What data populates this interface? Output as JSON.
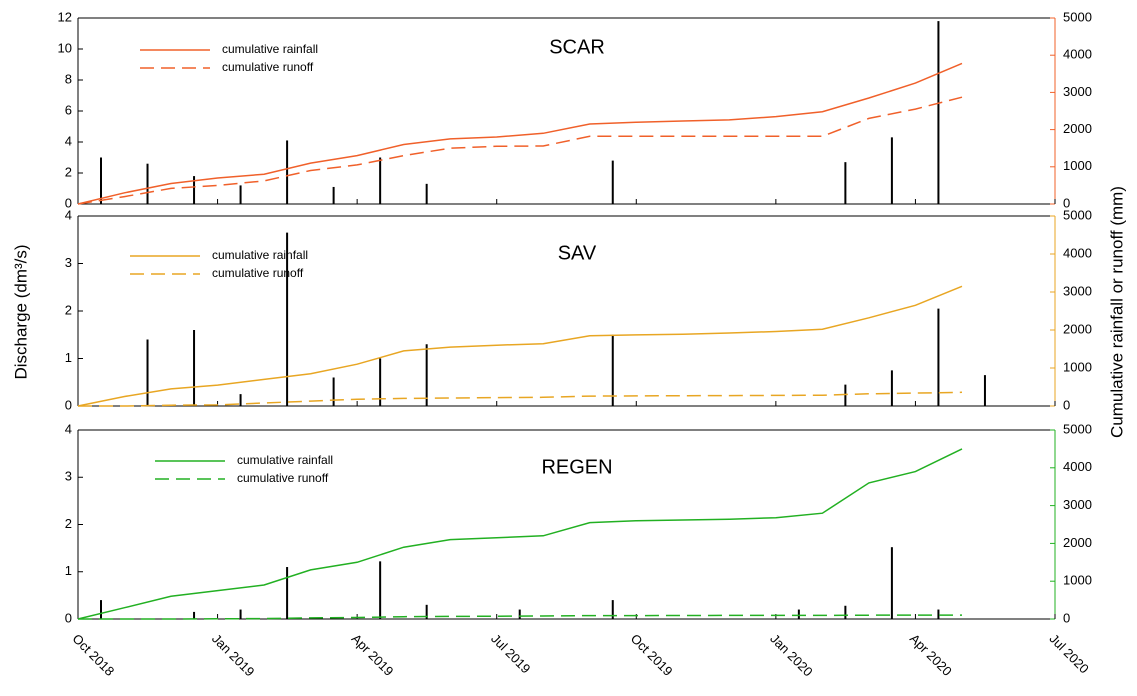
{
  "y_label": "Discharge (dm³/s)",
  "y2_label": "Cumulative rainfall or runoff (mm)",
  "chart_data": [
    {
      "type": "line",
      "title": "SCAR",
      "color": "#f0602a",
      "x": [
        "2018-10",
        "2018-11",
        "2018-12",
        "2019-01",
        "2019-02",
        "2019-03",
        "2019-04",
        "2019-05",
        "2019-06",
        "2019-07",
        "2019-08",
        "2019-09",
        "2019-10",
        "2019-11",
        "2019-12",
        "2020-01",
        "2020-02",
        "2020-03",
        "2020-04",
        "2020-05"
      ],
      "series": [
        {
          "name": "cumulative rainfall",
          "color": "#f0602a",
          "style": "solid",
          "axis": "y2",
          "values": [
            0,
            300,
            550,
            700,
            800,
            1100,
            1300,
            1600,
            1750,
            1800,
            1900,
            2150,
            2200,
            2230,
            2260,
            2350,
            2480,
            2850,
            3250,
            3780
          ]
        },
        {
          "name": "cumulative runoff",
          "color": "#f0602a",
          "style": "dashed",
          "axis": "y2",
          "values": [
            0,
            200,
            420,
            500,
            620,
            900,
            1050,
            1300,
            1500,
            1550,
            1560,
            1820,
            1820,
            1820,
            1820,
            1820,
            1820,
            2300,
            2550,
            2870
          ]
        }
      ],
      "discharge": {
        "color": "#000000",
        "x": [
          "2018-10",
          "2018-11",
          "2018-12",
          "2019-01",
          "2019-02",
          "2019-03",
          "2019-04",
          "2019-05",
          "2019-09",
          "2020-02",
          "2020-03",
          "2020-04"
        ],
        "values": [
          3.0,
          2.6,
          1.8,
          1.2,
          4.1,
          1.1,
          3.0,
          1.3,
          2.8,
          2.7,
          4.3,
          11.8
        ]
      },
      "xlim": [
        "2018-10",
        "2020-07"
      ],
      "ylim": [
        0,
        12
      ],
      "yticks": [
        0,
        2,
        4,
        6,
        8,
        10,
        12
      ],
      "y2lim": [
        0,
        5000
      ],
      "y2ticks": [
        0,
        1000,
        2000,
        3000,
        4000,
        5000
      ]
    },
    {
      "type": "line",
      "title": "SAV",
      "color": "#e8a623",
      "x": [
        "2018-10",
        "2018-11",
        "2018-12",
        "2019-01",
        "2019-02",
        "2019-03",
        "2019-04",
        "2019-05",
        "2019-06",
        "2019-07",
        "2019-08",
        "2019-09",
        "2019-10",
        "2019-11",
        "2019-12",
        "2020-01",
        "2020-02",
        "2020-03",
        "2020-04",
        "2020-05"
      ],
      "series": [
        {
          "name": "cumulative rainfall",
          "color": "#e8a623",
          "style": "solid",
          "axis": "y2",
          "values": [
            0,
            250,
            450,
            550,
            700,
            850,
            1100,
            1450,
            1550,
            1600,
            1640,
            1850,
            1870,
            1890,
            1920,
            1960,
            2020,
            2320,
            2650,
            3150
          ]
        },
        {
          "name": "cumulative runoff",
          "color": "#e8a623",
          "style": "dashed",
          "axis": "y2",
          "values": [
            0,
            0,
            20,
            30,
            80,
            130,
            180,
            200,
            210,
            220,
            230,
            260,
            265,
            270,
            275,
            280,
            285,
            320,
            340,
            360
          ]
        }
      ],
      "discharge": {
        "color": "#000000",
        "x": [
          "2018-11",
          "2018-12",
          "2019-01",
          "2019-02",
          "2019-03",
          "2019-04",
          "2019-05",
          "2019-09",
          "2020-02",
          "2020-03",
          "2020-04",
          "2020-05"
        ],
        "values": [
          1.4,
          1.6,
          0.25,
          3.65,
          0.6,
          1.0,
          1.3,
          1.5,
          0.45,
          0.75,
          2.05,
          0.65
        ]
      },
      "xlim": [
        "2018-10",
        "2020-07"
      ],
      "ylim": [
        0,
        4
      ],
      "yticks": [
        0,
        1,
        2,
        3,
        4
      ],
      "y2lim": [
        0,
        5000
      ],
      "y2ticks": [
        0,
        1000,
        2000,
        3000,
        4000,
        5000
      ]
    },
    {
      "type": "line",
      "title": "REGEN",
      "color": "#22b022",
      "x": [
        "2018-10",
        "2018-11",
        "2018-12",
        "2019-01",
        "2019-02",
        "2019-03",
        "2019-04",
        "2019-05",
        "2019-06",
        "2019-07",
        "2019-08",
        "2019-09",
        "2019-10",
        "2019-11",
        "2019-12",
        "2020-01",
        "2020-02",
        "2020-03",
        "2020-04",
        "2020-05"
      ],
      "series": [
        {
          "name": "cumulative rainfall",
          "color": "#22b022",
          "style": "solid",
          "axis": "y2",
          "values": [
            0,
            300,
            600,
            750,
            900,
            1300,
            1500,
            1900,
            2100,
            2150,
            2200,
            2550,
            2600,
            2620,
            2640,
            2680,
            2800,
            3600,
            3900,
            4500
          ]
        },
        {
          "name": "cumulative runoff",
          "color": "#22b022",
          "style": "dashed",
          "axis": "y2",
          "values": [
            0,
            0,
            0,
            5,
            10,
            30,
            40,
            60,
            70,
            75,
            80,
            90,
            90,
            92,
            94,
            95,
            96,
            100,
            102,
            104
          ]
        }
      ],
      "discharge": {
        "color": "#000000",
        "x": [
          "2018-10",
          "2018-12",
          "2019-01",
          "2019-02",
          "2019-04",
          "2019-05",
          "2019-07",
          "2019-09",
          "2020-01",
          "2020-02",
          "2020-03",
          "2020-04"
        ],
        "values": [
          0.4,
          0.15,
          0.2,
          1.1,
          1.22,
          0.3,
          0.2,
          0.4,
          0.2,
          0.28,
          1.52,
          0.2
        ]
      },
      "xlim": [
        "2018-10",
        "2020-07"
      ],
      "xticks": [
        {
          "value": "2018-10",
          "label": "Oct 2018"
        },
        {
          "value": "2019-01",
          "label": "Jan 2019"
        },
        {
          "value": "2019-04",
          "label": "Apr 2019"
        },
        {
          "value": "2019-07",
          "label": "Jul 2019"
        },
        {
          "value": "2019-10",
          "label": "Oct 2019"
        },
        {
          "value": "2020-01",
          "label": "Jan 2020"
        },
        {
          "value": "2020-04",
          "label": "Apr 2020"
        },
        {
          "value": "2020-07",
          "label": "Jul 2020"
        }
      ],
      "ylim": [
        0,
        4
      ],
      "yticks": [
        0,
        1,
        2,
        3,
        4
      ],
      "y2lim": [
        0,
        5000
      ],
      "y2ticks": [
        0,
        1000,
        2000,
        3000,
        4000,
        5000
      ]
    }
  ]
}
